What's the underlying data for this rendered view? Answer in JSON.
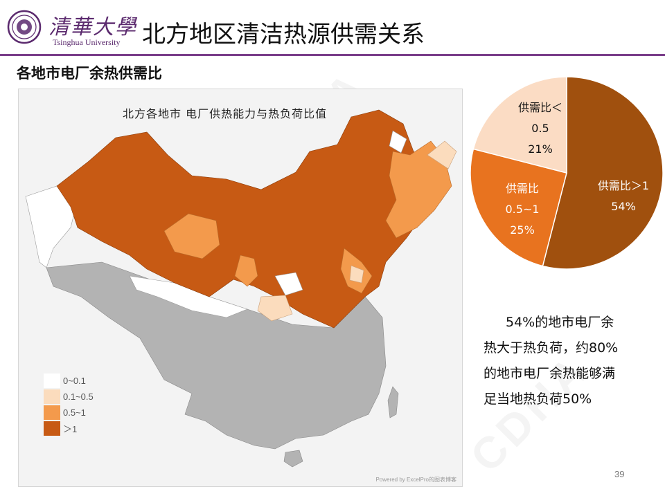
{
  "header": {
    "logo_cn": "清華大學",
    "logo_en": "Tsinghua University",
    "title": "北方地区清洁热源供需关系"
  },
  "watermark_text": "CDHA",
  "subtitle": "各地市电厂余热供需比",
  "map": {
    "title": "北方各地市 电厂供热能力与热负荷比值",
    "credit": "Powered by ExcelPro的图表博客",
    "legend": [
      {
        "label": "0~0.1",
        "color": "#ffffff"
      },
      {
        "label": "0.1~0.5",
        "color": "#fbdcbd"
      },
      {
        "label": "0.5~1",
        "color": "#f39a4c"
      },
      {
        "label": "＞1",
        "color": "#c75a14"
      }
    ],
    "no_data_color": "#b0b0b0"
  },
  "chart_data": {
    "type": "pie",
    "slices": [
      {
        "label_lines": [
          "供需比＞1",
          "54%"
        ],
        "value": 54,
        "color": "#a0500e"
      },
      {
        "label_lines": [
          "供需比",
          "0.5~1",
          "25%"
        ],
        "value": 25,
        "color": "#e8731f"
      },
      {
        "label_lines": [
          "供需比＜",
          "0.5",
          "21%"
        ],
        "value": 21,
        "color": "#fbdcc4"
      }
    ]
  },
  "note": {
    "lines": [
      "54%的地市电厂余",
      "热大于热负荷，约80%",
      "的地市电厂余热能够满",
      "足当地热负荷50%"
    ]
  },
  "page_number": "39"
}
